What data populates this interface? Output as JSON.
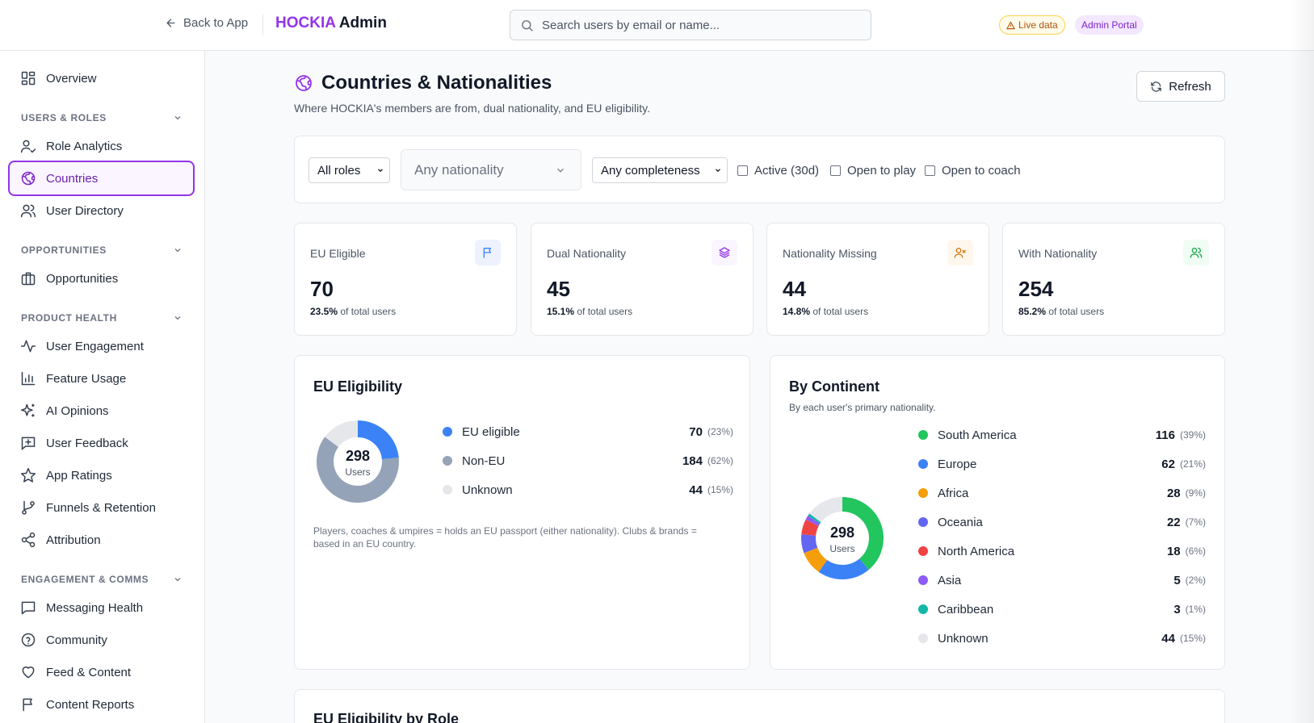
{
  "header": {
    "back_label": "Back to App",
    "brand_accent": "HOCKIA",
    "brand_rest": "Admin",
    "search_placeholder": "Search users by email or name...",
    "badge_live": "Live data",
    "badge_portal": "Admin Portal"
  },
  "sidebar": {
    "overview": "Overview",
    "sections": {
      "users_roles": "USERS & ROLES",
      "opportunities": "OPPORTUNITIES",
      "product_health": "PRODUCT HEALTH",
      "engagement": "ENGAGEMENT & COMMS"
    },
    "items": {
      "role_analytics": "Role Analytics",
      "countries": "Countries",
      "user_directory": "User Directory",
      "opportunities": "Opportunities",
      "user_engagement": "User Engagement",
      "feature_usage": "Feature Usage",
      "ai_opinions": "AI Opinions",
      "user_feedback": "User Feedback",
      "app_ratings": "App Ratings",
      "funnels": "Funnels & Retention",
      "attribution": "Attribution",
      "messaging": "Messaging Health",
      "community": "Community",
      "feed": "Feed & Content",
      "content_reports": "Content Reports"
    }
  },
  "page": {
    "title": "Countries & Nationalities",
    "subtitle": "Where HOCKIA's members are from, dual nationality, and EU eligibility.",
    "refresh_label": "Refresh"
  },
  "filters": {
    "roles": "All roles",
    "nationality": "Any nationality",
    "completeness": "Any completeness",
    "active": "Active (30d)",
    "open_play": "Open to play",
    "open_coach": "Open to coach"
  },
  "stats": [
    {
      "label": "EU Eligible",
      "value": "70",
      "pct": "23.5%",
      "suffix": "of total users",
      "icon": "flag-icon",
      "icon_color": "#3b82f6",
      "icon_bg": "#eef2ff"
    },
    {
      "label": "Dual Nationality",
      "value": "45",
      "pct": "15.1%",
      "suffix": "of total users",
      "icon": "layers-icon",
      "icon_color": "#9333ea",
      "icon_bg": "#faf5ff"
    },
    {
      "label": "Nationality Missing",
      "value": "44",
      "pct": "14.8%",
      "suffix": "of total users",
      "icon": "user-x-icon",
      "icon_color": "#d97706",
      "icon_bg": "#fff7ed"
    },
    {
      "label": "With Nationality",
      "value": "254",
      "pct": "85.2%",
      "suffix": "of total users",
      "icon": "users-icon",
      "icon_color": "#16a34a",
      "icon_bg": "#f0fdf4"
    }
  ],
  "eu_panel": {
    "title": "EU Eligibility",
    "center_value": "298",
    "center_label": "Users",
    "note": "Players, coaches & umpires = holds an EU passport (either nationality). Clubs & brands = based in an EU country."
  },
  "continent_panel": {
    "title": "By Continent",
    "subtitle": "By each user's primary nationality.",
    "center_value": "298",
    "center_label": "Users"
  },
  "chart_data": [
    {
      "type": "pie",
      "title": "EU Eligibility",
      "categories": [
        "EU eligible",
        "Non-EU",
        "Unknown"
      ],
      "values": [
        70,
        184,
        44
      ],
      "percent_labels": [
        "(23%)",
        "(62%)",
        "(15%)"
      ],
      "colors": [
        "#3b82f6",
        "#94a3b8",
        "#e5e7eb"
      ]
    },
    {
      "type": "pie",
      "title": "By Continent",
      "categories": [
        "South America",
        "Europe",
        "Africa",
        "Oceania",
        "North America",
        "Asia",
        "Caribbean",
        "Unknown"
      ],
      "values": [
        116,
        62,
        28,
        22,
        18,
        5,
        3,
        44
      ],
      "percent_labels": [
        "(39%)",
        "(21%)",
        "(9%)",
        "(7%)",
        "(6%)",
        "(2%)",
        "(1%)",
        "(15%)"
      ],
      "colors": [
        "#22c55e",
        "#3b82f6",
        "#f59e0b",
        "#6366f1",
        "#ef4444",
        "#8b5cf6",
        "#14b8a6",
        "#e5e7eb"
      ]
    }
  ],
  "bottom": {
    "title": "EU Eligibility by Role"
  }
}
